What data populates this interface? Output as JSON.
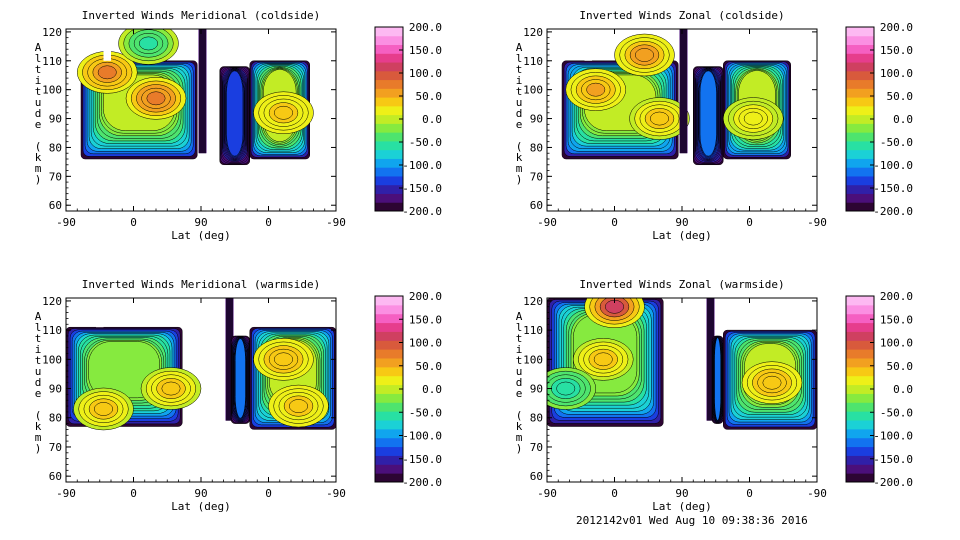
{
  "figure": {
    "footer": "2012142v01 Wed Aug 10 09:38:36 2016"
  },
  "colorbar": {
    "ticks": [
      "200.0",
      "150.0",
      "100.0",
      "50.0",
      "0.0",
      "-50.0",
      "-100.0",
      "-150.0",
      "-200.0"
    ],
    "range": [
      -200,
      200
    ],
    "colors": [
      "#2d0533",
      "#4b0f7a",
      "#3020a8",
      "#1a3ee0",
      "#1273f0",
      "#10a5ee",
      "#1bd1d6",
      "#28e0a3",
      "#4ee46e",
      "#86ea3f",
      "#c2ec25",
      "#eef018",
      "#f7c914",
      "#f2a020",
      "#e87b2a",
      "#d85a3c",
      "#cf4060",
      "#e63d8c",
      "#f55fc2",
      "#fb8fe2",
      "#fdb9f2"
    ]
  },
  "chart_data": [
    {
      "type": "heatmap",
      "title": "Inverted Winds Meridional (coldside)",
      "xlabel": "Lat (deg)",
      "ylabel": "Altitude (km)",
      "xticks": [
        "-90",
        "0",
        "90",
        "0",
        "-90"
      ],
      "yticks": [
        60,
        70,
        80,
        90,
        100,
        110,
        120
      ],
      "ylim": [
        58,
        121
      ],
      "xlim": [
        -90,
        270
      ],
      "contours": true,
      "colorbar_range": [
        -200,
        200
      ],
      "segments": [
        {
          "x": [
            -70,
            85
          ],
          "alt": [
            76,
            110
          ],
          "top_gap": [
            -40,
            -30
          ],
          "value": 10,
          "blobs": [
            {
              "x": -35,
              "alt": 106,
              "value": 70
            },
            {
              "x": 30,
              "alt": 97,
              "value": 80
            },
            {
              "x": 20,
              "alt": 116,
              "value": -60
            }
          ]
        },
        {
          "x": 92,
          "alt": [
            78,
            121
          ],
          "value": -180
        },
        {
          "x": [
            115,
            155
          ],
          "alt": [
            74,
            108
          ],
          "value": -130
        },
        {
          "x": [
            155,
            235
          ],
          "alt": [
            76,
            110
          ],
          "value": 5,
          "blobs": [
            {
              "x": 200,
              "alt": 92,
              "value": 40
            }
          ]
        }
      ]
    },
    {
      "type": "heatmap",
      "title": "Inverted Winds Zonal (coldside)",
      "xlabel": "Lat (deg)",
      "ylabel": "Altitude (km)",
      "xticks": [
        "-90",
        "0",
        "90",
        "0",
        "-90"
      ],
      "yticks": [
        60,
        70,
        80,
        90,
        100,
        110,
        120
      ],
      "ylim": [
        58,
        121
      ],
      "xlim": [
        -90,
        270
      ],
      "contours": true,
      "colorbar_range": [
        -200,
        200
      ],
      "segments": [
        {
          "x": [
            -70,
            85
          ],
          "alt": [
            76,
            110
          ],
          "top_gap": [
            -40,
            -30
          ],
          "value": 0,
          "blobs": [
            {
              "x": -25,
              "alt": 100,
              "value": 50
            },
            {
              "x": 40,
              "alt": 112,
              "value": 60
            },
            {
              "x": 60,
              "alt": 90,
              "value": 45
            }
          ]
        },
        {
          "x": 92,
          "alt": [
            78,
            121
          ],
          "value": -180
        },
        {
          "x": [
            105,
            145
          ],
          "alt": [
            74,
            108
          ],
          "value": -120
        },
        {
          "x": [
            145,
            235
          ],
          "alt": [
            76,
            110
          ],
          "value": 0,
          "blobs": [
            {
              "x": 185,
              "alt": 90,
              "value": 20
            }
          ]
        }
      ]
    },
    {
      "type": "heatmap",
      "title": "Inverted Winds Meridional (warmside)",
      "xlabel": "Lat (deg)",
      "ylabel": "Altitude (km)",
      "xticks": [
        "-90",
        "0",
        "90",
        "0",
        "-90"
      ],
      "yticks": [
        60,
        70,
        80,
        90,
        100,
        110,
        120
      ],
      "ylim": [
        58,
        121
      ],
      "xlim": [
        -90,
        270
      ],
      "contours": true,
      "colorbar_range": [
        -200,
        200
      ],
      "segments": [
        {
          "x": [
            -90,
            65
          ],
          "alt": [
            77,
            111
          ],
          "top_gap": [
            -50,
            -40
          ],
          "value": -5,
          "blobs": [
            {
              "x": -40,
              "alt": 83,
              "value": 40
            },
            {
              "x": 50,
              "alt": 90,
              "value": 45
            }
          ]
        },
        {
          "x": 128,
          "alt": [
            79,
            121
          ],
          "value": -180
        },
        {
          "x": [
            130,
            155
          ],
          "alt": [
            78,
            108
          ],
          "value": -120
        },
        {
          "x": [
            155,
            270
          ],
          "alt": [
            76,
            111
          ],
          "value": 10,
          "blobs": [
            {
              "x": 200,
              "alt": 100,
              "value": 45
            },
            {
              "x": 220,
              "alt": 84,
              "value": 40
            }
          ]
        }
      ]
    },
    {
      "type": "heatmap",
      "title": "Inverted Winds Zonal (warmside)",
      "xlabel": "Lat (deg)",
      "ylabel": "Altitude (km)",
      "xticks": [
        "-90",
        "0",
        "90",
        "0",
        "-90"
      ],
      "yticks": [
        60,
        70,
        80,
        90,
        100,
        110,
        120
      ],
      "ylim": [
        58,
        121
      ],
      "xlim": [
        -90,
        270
      ],
      "contours": true,
      "colorbar_range": [
        -200,
        200
      ],
      "segments": [
        {
          "x": [
            -90,
            65
          ],
          "alt": [
            77,
            121
          ],
          "top_gap": [
            -75,
            -55
          ],
          "value": -10,
          "blobs": [
            {
              "x": 0,
              "alt": 118,
              "value": 110
            },
            {
              "x": -15,
              "alt": 100,
              "value": 40
            },
            {
              "x": -65,
              "alt": 90,
              "value": -60
            }
          ]
        },
        {
          "x": 128,
          "alt": [
            79,
            121
          ],
          "value": -180
        },
        {
          "x": [
            130,
            145
          ],
          "alt": [
            78,
            108
          ],
          "value": -120
        },
        {
          "x": [
            145,
            270
          ],
          "alt": [
            76,
            110
          ],
          "value": 10,
          "blobs": [
            {
              "x": 210,
              "alt": 92,
              "value": 45
            }
          ]
        }
      ]
    }
  ]
}
